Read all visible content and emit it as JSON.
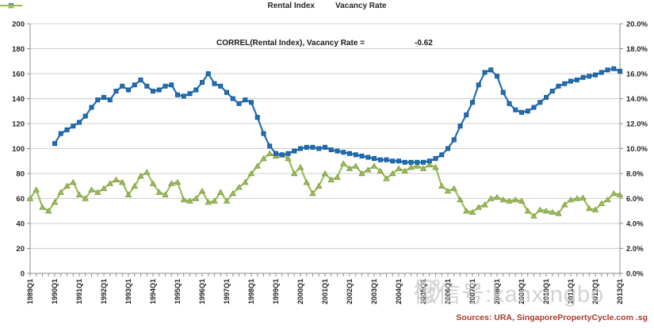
{
  "legend": {
    "items": [
      {
        "label": "Rental Index",
        "color": "#1F6EB5",
        "marker": "square"
      },
      {
        "label": "Vacancy Rate",
        "color": "#9BBB59",
        "marker": "triangle"
      }
    ]
  },
  "annotation": {
    "label": "CORREL(Rental Index), Vacancy Rate  =",
    "value": "-0.62"
  },
  "source": {
    "text": "Sources:  URA, SingaporePropertyCycle.com .sg",
    "color": "#A63A2B"
  },
  "watermark": {
    "text": "微信号:kanxingbo",
    "face_icon": "smiley-face-icon"
  },
  "chart_data": {
    "type": "line",
    "title": "",
    "grid": true,
    "legend_position": "top",
    "x_quarters_total": 97,
    "x_start": "1989Q1",
    "x_end": "2013Q1",
    "x_tick_labels": [
      "1989Q1",
      "1990Q1",
      "1991Q1",
      "1992Q1",
      "1993Q1",
      "1994Q1",
      "1995Q1",
      "1996Q1",
      "1997Q1",
      "1998Q1",
      "1999Q1",
      "2000Q1",
      "2001Q1",
      "2002Q1",
      "2003Q1",
      "2004Q1",
      "2005Q1",
      "2006Q1",
      "2007Q1",
      "2008Q1",
      "2009Q1",
      "2010Q1",
      "2011Q1",
      "2012Q1",
      "2013Q1"
    ],
    "left_axis": {
      "min": 0,
      "max": 200,
      "step": 20,
      "ticks": [
        "0",
        "20",
        "40",
        "60",
        "80",
        "100",
        "120",
        "140",
        "160",
        "180",
        "200"
      ]
    },
    "right_axis": {
      "min": 0,
      "max": 20,
      "step": 2,
      "ticks": [
        "0.0%",
        "2.0%",
        "4.0%",
        "6.0%",
        "8.0%",
        "10.0%",
        "12.0%",
        "14.0%",
        "16.0%",
        "18.0%",
        "20.0%"
      ]
    },
    "series": [
      {
        "name": "Rental Index",
        "axis": "left",
        "color": "#1F6EB5",
        "edge": "#15568F",
        "marker": "square",
        "start_index": 4,
        "start_label": "1990Q1",
        "values": [
          104,
          112,
          115,
          118,
          121,
          126,
          133,
          139,
          141,
          139,
          146,
          150,
          147,
          151,
          155,
          150,
          146,
          147,
          150,
          151,
          143,
          142,
          144,
          147,
          153,
          160,
          152,
          150,
          145,
          140,
          136,
          139,
          137,
          125,
          112,
          102,
          96,
          95,
          96,
          98,
          100,
          101,
          101,
          100,
          101,
          99,
          98,
          97,
          96,
          95,
          94,
          93,
          92,
          91,
          91,
          90,
          90,
          89,
          89,
          89,
          89,
          90,
          92,
          95,
          100,
          107,
          118,
          127,
          137,
          151,
          161,
          163,
          158,
          145,
          136,
          131,
          129,
          130,
          133,
          137,
          141,
          146,
          150,
          152,
          154,
          155,
          157,
          158,
          159,
          161,
          163,
          164,
          162
        ]
      },
      {
        "name": "Vacancy Rate",
        "axis": "right",
        "color": "#9BBB59",
        "edge": "#7E9A43",
        "marker": "triangle",
        "start_index": 0,
        "start_label": "1989Q1",
        "values": [
          6.0,
          6.7,
          5.3,
          5.0,
          5.7,
          6.5,
          7.0,
          7.3,
          6.3,
          6.0,
          6.7,
          6.5,
          6.8,
          7.2,
          7.5,
          7.3,
          6.3,
          7.0,
          7.8,
          8.1,
          7.2,
          6.5,
          6.3,
          7.2,
          7.3,
          5.9,
          5.8,
          6.0,
          6.6,
          5.7,
          5.8,
          6.5,
          5.8,
          6.4,
          6.9,
          7.3,
          8.0,
          8.6,
          9.2,
          9.6,
          9.4,
          9.5,
          9.2,
          8.0,
          8.5,
          7.3,
          6.4,
          7.0,
          8.0,
          7.5,
          7.7,
          8.8,
          8.4,
          8.6,
          8.0,
          8.3,
          8.6,
          8.2,
          7.6,
          8.0,
          8.4,
          8.2,
          8.5,
          8.6,
          8.4,
          8.7,
          8.5,
          7.0,
          6.6,
          6.8,
          5.9,
          5.0,
          4.9,
          5.3,
          5.5,
          6.0,
          6.1,
          5.9,
          5.8,
          5.9,
          5.8,
          5.0,
          4.6,
          5.1,
          5.0,
          4.9,
          4.8,
          5.5,
          5.9,
          6.0,
          6.05,
          5.2,
          5.1,
          5.6,
          5.9,
          6.4,
          6.3
        ]
      }
    ],
    "colors": {
      "gridline": "#CFCFCF",
      "axis_line": "#8C8C8C",
      "tick_label": "#262626"
    }
  }
}
